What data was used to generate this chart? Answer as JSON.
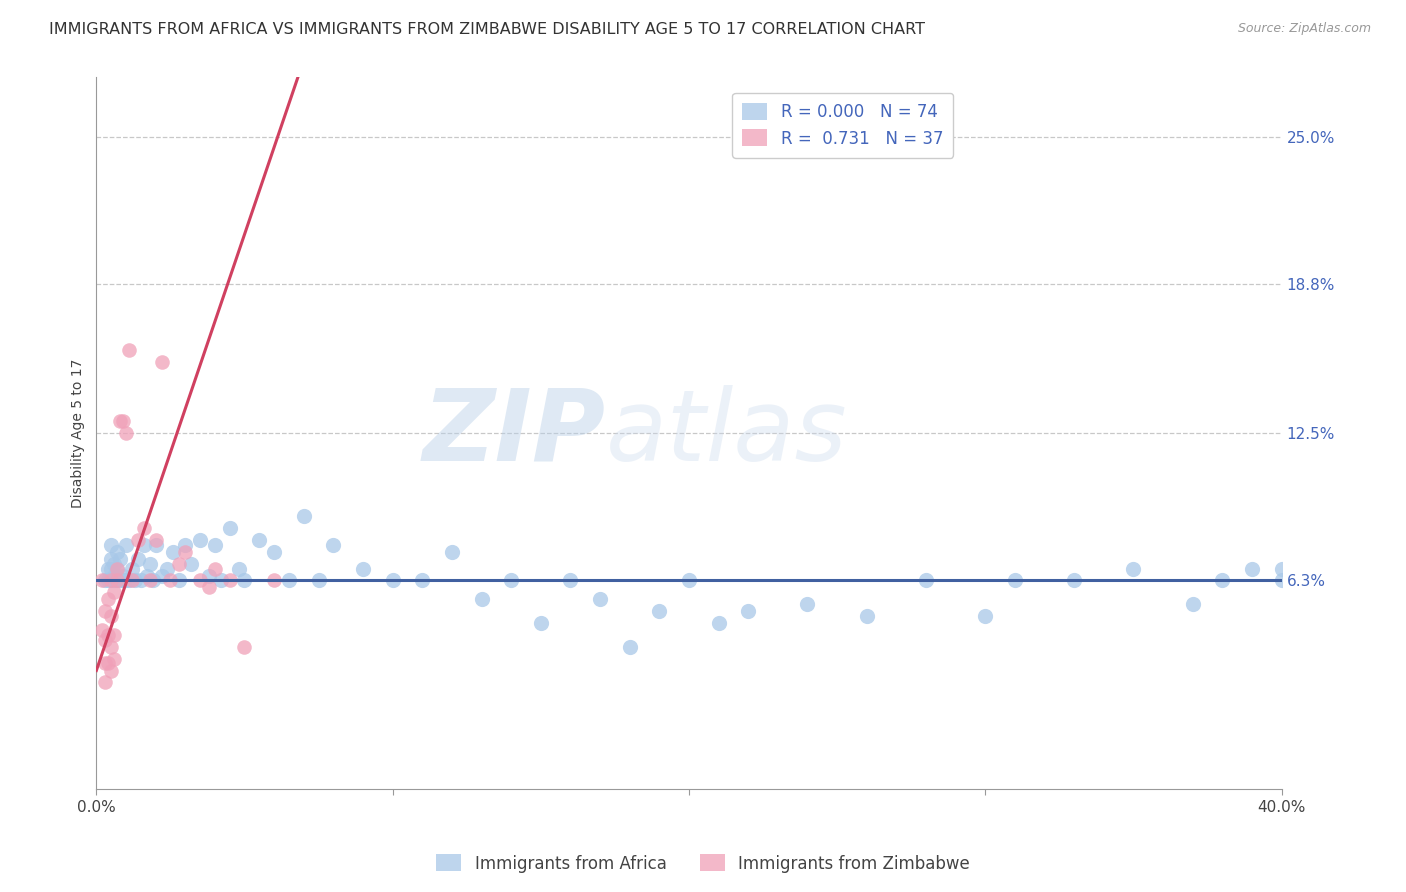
{
  "title": "IMMIGRANTS FROM AFRICA VS IMMIGRANTS FROM ZIMBABWE DISABILITY AGE 5 TO 17 CORRELATION CHART",
  "source": "Source: ZipAtlas.com",
  "ylabel": "Disability Age 5 to 17",
  "y_tick_labels": [
    "6.3%",
    "12.5%",
    "18.8%",
    "25.0%"
  ],
  "y_ticks": [
    0.063,
    0.125,
    0.188,
    0.25
  ],
  "xlim": [
    0.0,
    0.4
  ],
  "ylim": [
    -0.025,
    0.275
  ],
  "watermark_zip": "ZIP",
  "watermark_atlas": "atlas",
  "legend_line1": "R = 0.000   N = 74",
  "legend_line2": "R =  0.731   N = 37",
  "blue_color": "#a8c8e8",
  "pink_color": "#f0a0b8",
  "trend_blue_color": "#4060a0",
  "trend_pink_color": "#d04060",
  "title_fontsize": 11.5,
  "source_fontsize": 9,
  "axis_label_fontsize": 10,
  "tick_fontsize": 11,
  "blue_scatter_x": [
    0.003,
    0.004,
    0.004,
    0.005,
    0.005,
    0.005,
    0.005,
    0.006,
    0.006,
    0.006,
    0.007,
    0.007,
    0.007,
    0.008,
    0.008,
    0.009,
    0.009,
    0.01,
    0.01,
    0.011,
    0.012,
    0.013,
    0.014,
    0.015,
    0.016,
    0.017,
    0.018,
    0.019,
    0.02,
    0.022,
    0.024,
    0.026,
    0.028,
    0.03,
    0.032,
    0.035,
    0.038,
    0.04,
    0.042,
    0.045,
    0.048,
    0.05,
    0.055,
    0.06,
    0.065,
    0.07,
    0.075,
    0.08,
    0.09,
    0.1,
    0.11,
    0.12,
    0.13,
    0.14,
    0.15,
    0.16,
    0.17,
    0.18,
    0.19,
    0.2,
    0.21,
    0.22,
    0.24,
    0.26,
    0.28,
    0.3,
    0.31,
    0.33,
    0.35,
    0.37,
    0.38,
    0.39,
    0.4,
    0.4
  ],
  "blue_scatter_y": [
    0.063,
    0.063,
    0.068,
    0.063,
    0.068,
    0.072,
    0.078,
    0.063,
    0.065,
    0.07,
    0.063,
    0.068,
    0.075,
    0.063,
    0.072,
    0.063,
    0.065,
    0.063,
    0.078,
    0.063,
    0.068,
    0.063,
    0.072,
    0.063,
    0.078,
    0.065,
    0.07,
    0.063,
    0.078,
    0.065,
    0.068,
    0.075,
    0.063,
    0.078,
    0.07,
    0.08,
    0.065,
    0.078,
    0.063,
    0.085,
    0.068,
    0.063,
    0.08,
    0.075,
    0.063,
    0.09,
    0.063,
    0.078,
    0.068,
    0.063,
    0.063,
    0.075,
    0.055,
    0.063,
    0.045,
    0.063,
    0.055,
    0.035,
    0.05,
    0.063,
    0.045,
    0.05,
    0.053,
    0.048,
    0.063,
    0.048,
    0.063,
    0.063,
    0.068,
    0.053,
    0.063,
    0.068,
    0.063,
    0.068
  ],
  "pink_scatter_x": [
    0.002,
    0.002,
    0.003,
    0.003,
    0.003,
    0.003,
    0.004,
    0.004,
    0.004,
    0.005,
    0.005,
    0.005,
    0.005,
    0.006,
    0.006,
    0.006,
    0.007,
    0.007,
    0.008,
    0.009,
    0.01,
    0.011,
    0.012,
    0.014,
    0.016,
    0.018,
    0.02,
    0.022,
    0.025,
    0.028,
    0.03,
    0.035,
    0.038,
    0.04,
    0.045,
    0.05,
    0.06
  ],
  "pink_scatter_y": [
    0.063,
    0.042,
    0.028,
    0.038,
    0.05,
    0.02,
    0.04,
    0.028,
    0.055,
    0.063,
    0.048,
    0.035,
    0.025,
    0.058,
    0.04,
    0.03,
    0.063,
    0.068,
    0.13,
    0.13,
    0.125,
    0.16,
    0.063,
    0.08,
    0.085,
    0.063,
    0.08,
    0.155,
    0.063,
    0.07,
    0.075,
    0.063,
    0.06,
    0.068,
    0.063,
    0.035,
    0.063
  ],
  "blue_trend_x": [
    0.0,
    0.4
  ],
  "blue_trend_y": [
    0.063,
    0.063
  ],
  "pink_trend_x": [
    0.0,
    0.068
  ],
  "pink_trend_y": [
    0.025,
    0.275
  ],
  "blue_marker_size": 120,
  "pink_marker_size": 110,
  "background_color": "#ffffff",
  "grid_color": "#c8c8c8",
  "axis_color": "#999999",
  "right_tick_color": "#4466bb",
  "watermark_color": "#d8e8f4",
  "watermark_alpha": 0.6
}
